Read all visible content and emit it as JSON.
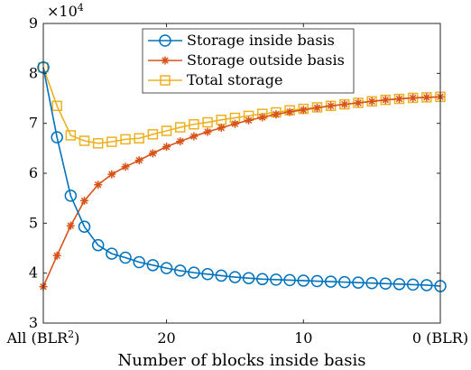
{
  "chart_data": {
    "type": "line",
    "xlabel": "Number of blocks inside basis",
    "ylabel": "",
    "y_multiplier_label": "×10",
    "y_multiplier_exponent": "4",
    "xlim": [
      29,
      0
    ],
    "ylim": [
      3,
      9
    ],
    "x_direction": "reversed",
    "x_ticks": [
      {
        "value": 29,
        "label": "All (BLR",
        "sup": "2",
        "after": ")"
      },
      {
        "value": 20,
        "label": "20",
        "sup": "",
        "after": ""
      },
      {
        "value": 10,
        "label": "10",
        "sup": "",
        "after": ""
      },
      {
        "value": 0,
        "label": "0 (BLR)",
        "sup": "",
        "after": ""
      }
    ],
    "y_ticks": [
      3,
      4,
      5,
      6,
      7,
      8,
      9
    ],
    "grid": false,
    "legend_position": "top-center",
    "x": [
      29,
      28,
      27,
      26,
      25,
      24,
      23,
      22,
      21,
      20,
      19,
      18,
      17,
      16,
      15,
      14,
      13,
      12,
      11,
      10,
      9,
      8,
      7,
      6,
      5,
      4,
      3,
      2,
      1,
      0
    ],
    "series": [
      {
        "name": "Storage inside basis",
        "color": "#0072BD",
        "marker": "circle",
        "values": [
          8.12,
          6.72,
          5.55,
          4.93,
          4.56,
          4.39,
          4.31,
          4.22,
          4.16,
          4.1,
          4.05,
          4.01,
          3.98,
          3.95,
          3.92,
          3.9,
          3.88,
          3.87,
          3.86,
          3.85,
          3.84,
          3.83,
          3.82,
          3.81,
          3.8,
          3.79,
          3.78,
          3.77,
          3.76,
          3.74
        ]
      },
      {
        "name": "Storage outside basis",
        "color": "#D95319",
        "marker": "asterisk",
        "values": [
          3.73,
          4.35,
          4.95,
          5.45,
          5.77,
          5.98,
          6.13,
          6.26,
          6.4,
          6.53,
          6.64,
          6.74,
          6.83,
          6.91,
          6.99,
          7.06,
          7.12,
          7.18,
          7.23,
          7.27,
          7.31,
          7.35,
          7.38,
          7.41,
          7.44,
          7.47,
          7.49,
          7.51,
          7.52,
          7.53
        ]
      },
      {
        "name": "Total storage",
        "color": "#EDB120",
        "marker": "square",
        "values": [
          8.12,
          7.35,
          6.76,
          6.65,
          6.6,
          6.63,
          6.68,
          6.7,
          6.78,
          6.85,
          6.92,
          6.98,
          7.02,
          7.07,
          7.11,
          7.15,
          7.19,
          7.22,
          7.26,
          7.29,
          7.32,
          7.35,
          7.38,
          7.41,
          7.44,
          7.47,
          7.49,
          7.51,
          7.52,
          7.53
        ]
      }
    ]
  }
}
